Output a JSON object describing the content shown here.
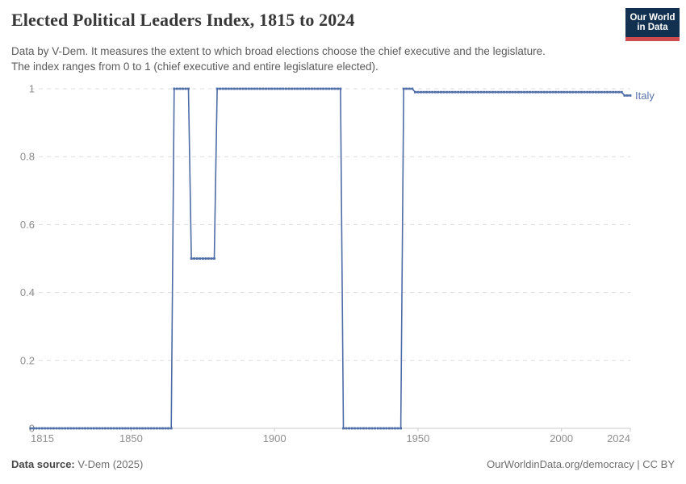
{
  "header": {
    "title": "Elected Political Leaders Index, 1815 to 2024",
    "subtitle_lines": [
      "Data by V-Dem. It measures the extent to which broad elections choose the chief executive and the legislature.",
      "The index ranges from 0 to 1 (chief executive and entire legislature elected)."
    ],
    "logo_line1": "Our World",
    "logo_line2": "in Data",
    "logo_bg_color": "#12304f",
    "logo_bar_color": "#cf4a4e"
  },
  "footer": {
    "source_label": "Data source:",
    "source_value": " V-Dem (2025)",
    "credit": "OurWorldinData.org/democracy | CC BY"
  },
  "chart_data": {
    "type": "line",
    "title": "Elected Political Leaders Index, 1815 to 2024",
    "entity": "Italy",
    "xlabel": "",
    "ylabel": "",
    "xlim": [
      1815,
      2024
    ],
    "ylim": [
      0,
      1
    ],
    "grid": true,
    "legend_position": "end-of-line",
    "line_color": "#4e6ca6",
    "entity_label_color": "#5b74ad",
    "axis_text_color": "#8e8e8e",
    "gridline_color": "#dcdcdc",
    "axis_line_color": "#c9c9c9",
    "xticks": [
      1815,
      1850,
      1900,
      1950,
      2000,
      2024
    ],
    "yticks": [
      {
        "value": 0,
        "label": "0"
      },
      {
        "value": 0.2,
        "label": "0.2"
      },
      {
        "value": 0.4,
        "label": "0.4"
      },
      {
        "value": 0.6,
        "label": "0.6"
      },
      {
        "value": 0.8,
        "label": "0.8"
      },
      {
        "value": 1,
        "label": "1"
      }
    ],
    "series": [
      {
        "name": "Italy",
        "step_segments": [
          {
            "from": 1815,
            "to": 1864,
            "value": 0
          },
          {
            "from": 1865,
            "to": 1870,
            "value": 1
          },
          {
            "from": 1871,
            "to": 1879,
            "value": 0.5
          },
          {
            "from": 1880,
            "to": 1923,
            "value": 1
          },
          {
            "from": 1924,
            "to": 1944,
            "value": 0
          },
          {
            "from": 1945,
            "to": 1948,
            "value": 1
          },
          {
            "from": 1949,
            "to": 2021,
            "value": 0.99
          },
          {
            "from": 2022,
            "to": 2024,
            "value": 0.98
          }
        ]
      }
    ]
  }
}
